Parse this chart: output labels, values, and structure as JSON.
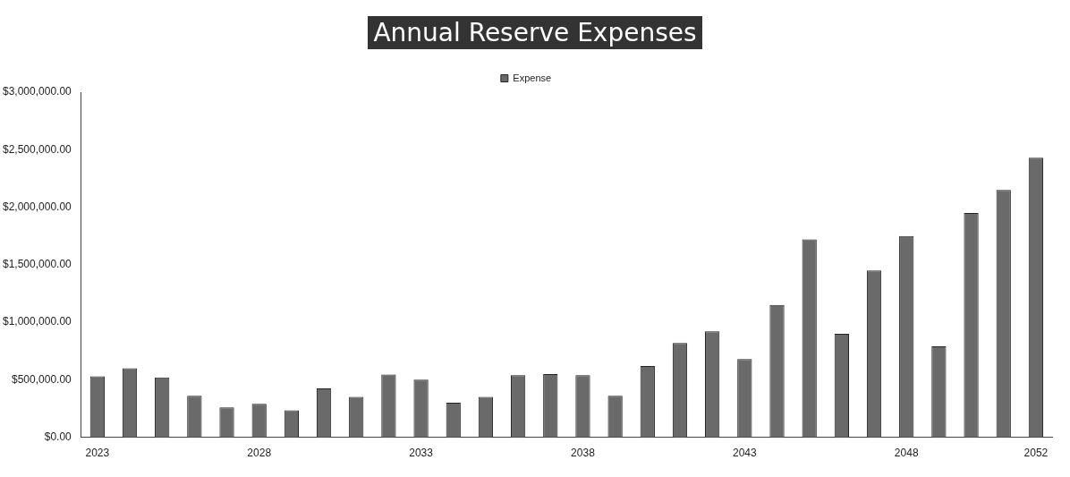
{
  "chart_data": {
    "type": "bar",
    "title": "Annual Reserve Expenses",
    "categories": [
      "2023",
      null,
      null,
      null,
      null,
      "2028",
      null,
      null,
      null,
      null,
      "2033",
      null,
      null,
      null,
      null,
      "2038",
      null,
      null,
      null,
      null,
      "2043",
      null,
      null,
      null,
      null,
      "2048",
      null,
      null,
      null,
      "2052"
    ],
    "series": [
      {
        "name": "Expense",
        "color": "#6a6a6a",
        "values": [
          530000,
          600000,
          520000,
          360000,
          260000,
          290000,
          235000,
          425000,
          350000,
          545000,
          500000,
          300000,
          350000,
          540000,
          550000,
          540000,
          360000,
          620000,
          820000,
          920000,
          680000,
          1150000,
          1720000,
          900000,
          1450000,
          1750000,
          790000,
          1950000,
          2150000,
          2430000
        ]
      }
    ],
    "ylim": [
      0,
      3000000
    ],
    "yticks": [
      {
        "value": 0,
        "label": "$0.00"
      },
      {
        "value": 500000,
        "label": "$500,000.00"
      },
      {
        "value": 1000000,
        "label": "$1,000,000.00"
      },
      {
        "value": 1500000,
        "label": "$1,500,000.00"
      },
      {
        "value": 2000000,
        "label": "$2,000,000.00"
      },
      {
        "value": 2500000,
        "label": "$2,500,000.00"
      },
      {
        "value": 3000000,
        "label": "$3,000,000.00"
      }
    ],
    "grid": false,
    "legend": "top"
  }
}
